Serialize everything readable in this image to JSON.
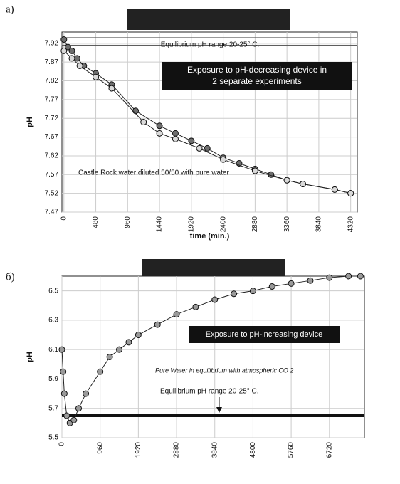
{
  "chart_data": [
    {
      "type": "scatter-line",
      "panel_label": "а)",
      "xlabel": "time (min.)",
      "ylabel": "pH",
      "xlim": [
        -30,
        4420
      ],
      "ylim": [
        7.47,
        7.95
      ],
      "xticks": [
        0,
        480,
        960,
        1440,
        1920,
        2400,
        2880,
        3360,
        3840,
        4320
      ],
      "yticks": [
        7.47,
        7.52,
        7.57,
        7.62,
        7.67,
        7.72,
        7.77,
        7.82,
        7.87,
        7.92
      ],
      "equilibrium_band": [
        7.915,
        7.935
      ],
      "annotations": [
        "Equilibrium pH range 20-25° C.",
        "Exposure to pH-decreasing device in 2 separate experiments",
        "Castle Rock water diluted 50/50 with pure water"
      ],
      "series": [
        {
          "color": "#6e6e6e",
          "x": [
            0,
            60,
            120,
            200,
            300,
            480,
            720,
            1080,
            1440,
            1680,
            1920,
            2160,
            2400,
            2640,
            2880,
            3120,
            3360,
            3600,
            4080,
            4320
          ],
          "values": [
            7.93,
            7.91,
            7.9,
            7.88,
            7.86,
            7.84,
            7.81,
            7.74,
            7.7,
            7.68,
            7.66,
            7.64,
            7.615,
            7.6,
            7.585,
            7.57,
            7.555,
            7.545,
            7.53,
            7.52
          ]
        },
        {
          "color": "#d9d9d9",
          "x": [
            0,
            120,
            240,
            480,
            720,
            1200,
            1440,
            1680,
            2040,
            2400,
            2880,
            3360,
            3600,
            4080,
            4320
          ],
          "values": [
            7.9,
            7.88,
            7.86,
            7.83,
            7.8,
            7.71,
            7.68,
            7.665,
            7.64,
            7.61,
            7.58,
            7.555,
            7.545,
            7.53,
            7.52
          ]
        }
      ]
    },
    {
      "type": "scatter-line",
      "panel_label": "б)",
      "ylabel": "pH",
      "xlim": [
        0,
        7600
      ],
      "ylim": [
        5.5,
        6.6
      ],
      "xticks": [
        0,
        960,
        1920,
        2880,
        3840,
        4800,
        5760,
        6720
      ],
      "yticks": [
        5.5,
        5.7,
        5.9,
        6.1,
        6.3,
        6.5
      ],
      "equilibrium_line": 5.65,
      "annotations": [
        "Exposure to pH-increasing device",
        "Pure Water in equilibrium with atmospheric CO 2",
        "Equilibrium pH range 20-25° C."
      ],
      "series": [
        {
          "color": "#9a9a9a",
          "x": [
            0,
            30,
            60,
            120,
            200,
            300,
            420,
            600,
            960,
            1200,
            1440,
            1680,
            1920,
            2400,
            2880,
            3360,
            3840,
            4320,
            4800,
            5280,
            5760,
            6240,
            6720,
            7200,
            7500
          ],
          "values": [
            6.1,
            5.95,
            5.8,
            5.65,
            5.6,
            5.62,
            5.7,
            5.8,
            5.95,
            6.05,
            6.1,
            6.15,
            6.2,
            6.27,
            6.34,
            6.39,
            6.44,
            6.48,
            6.5,
            6.53,
            6.55,
            6.57,
            6.59,
            6.6,
            6.6
          ]
        }
      ]
    }
  ]
}
